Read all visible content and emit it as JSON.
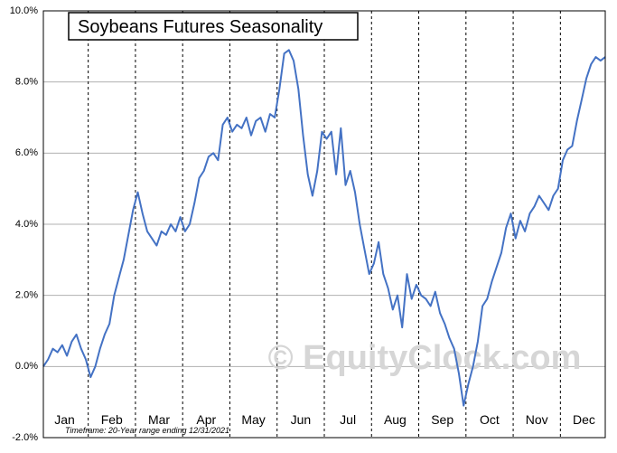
{
  "chart_data": {
    "type": "line",
    "title": "Soybeans Futures Seasonality",
    "footnote": "Timeframe: 20-Year range ending 12/31/2021",
    "watermark": "© EquityClock.com",
    "categories": [
      null,
      null,
      null,
      null,
      null,
      "Jan",
      null,
      null,
      null,
      null,
      null,
      null,
      null,
      null,
      null,
      "Feb",
      null,
      null,
      null,
      null,
      null,
      null,
      null,
      null,
      null,
      "Mar",
      null,
      null,
      null,
      null,
      null,
      null,
      null,
      null,
      null,
      "Apr",
      null,
      null,
      null,
      null,
      null,
      null,
      null,
      null,
      null,
      "May",
      null,
      null,
      null,
      null,
      null,
      null,
      null,
      null,
      null,
      "Jun",
      null,
      null,
      null,
      null,
      null,
      null,
      null,
      null,
      null,
      "Jul",
      null,
      null,
      null,
      null,
      null,
      null,
      null,
      null,
      null,
      "Aug",
      null,
      null,
      null,
      null,
      null,
      null,
      null,
      null,
      null,
      "Sep",
      null,
      null,
      null,
      null,
      null,
      null,
      null,
      null,
      null,
      "Oct",
      null,
      null,
      null,
      null,
      null,
      null,
      null,
      null,
      null,
      "Nov",
      null,
      null,
      null,
      null,
      null,
      null,
      null,
      null,
      null,
      "Dec",
      null,
      null,
      null,
      null
    ],
    "series": [
      {
        "color": "#4472c4",
        "values": [
          0.0,
          0.2,
          0.5,
          0.4,
          0.6,
          0.3,
          0.7,
          0.9,
          0.5,
          0.2,
          -0.3,
          0.0,
          0.5,
          0.9,
          1.2,
          2.0,
          2.5,
          3.0,
          3.7,
          4.4,
          4.9,
          4.3,
          3.8,
          3.6,
          3.4,
          3.8,
          3.7,
          4.0,
          3.8,
          4.2,
          3.8,
          4.0,
          4.6,
          5.3,
          5.5,
          5.9,
          6.0,
          5.8,
          6.8,
          7.0,
          6.6,
          6.8,
          6.7,
          7.0,
          6.5,
          6.9,
          7.0,
          6.6,
          7.1,
          7.0,
          7.8,
          8.8,
          8.9,
          8.6,
          7.8,
          6.5,
          5.4,
          4.8,
          5.5,
          6.6,
          6.4,
          6.6,
          5.4,
          6.7,
          5.1,
          5.5,
          4.9,
          4.0,
          3.3,
          2.6,
          2.9,
          3.5,
          2.6,
          2.2,
          1.6,
          2.0,
          1.1,
          2.6,
          1.9,
          2.3,
          2.0,
          1.9,
          1.7,
          2.1,
          1.5,
          1.2,
          0.8,
          0.5,
          -0.2,
          -1.1,
          -0.5,
          0.0,
          0.7,
          1.7,
          1.9,
          2.4,
          2.8,
          3.2,
          3.9,
          4.3,
          3.6,
          4.1,
          3.8,
          4.3,
          4.5,
          4.8,
          4.6,
          4.4,
          4.8,
          5.0,
          5.8,
          6.1,
          6.2,
          6.9,
          7.5,
          8.1,
          8.5,
          8.7,
          8.6,
          8.7
        ]
      }
    ],
    "ylim": [
      -2,
      10
    ],
    "yticks": [
      {
        "value": -2,
        "label": "-2.0%"
      },
      {
        "value": 0,
        "label": "0.0%"
      },
      {
        "value": 2,
        "label": "2.0%"
      },
      {
        "value": 4,
        "label": "4.0%"
      },
      {
        "value": 6,
        "label": "6.0%"
      },
      {
        "value": 8,
        "label": "8.0%"
      },
      {
        "value": 10,
        "label": "10.0%"
      }
    ],
    "grid": true
  }
}
